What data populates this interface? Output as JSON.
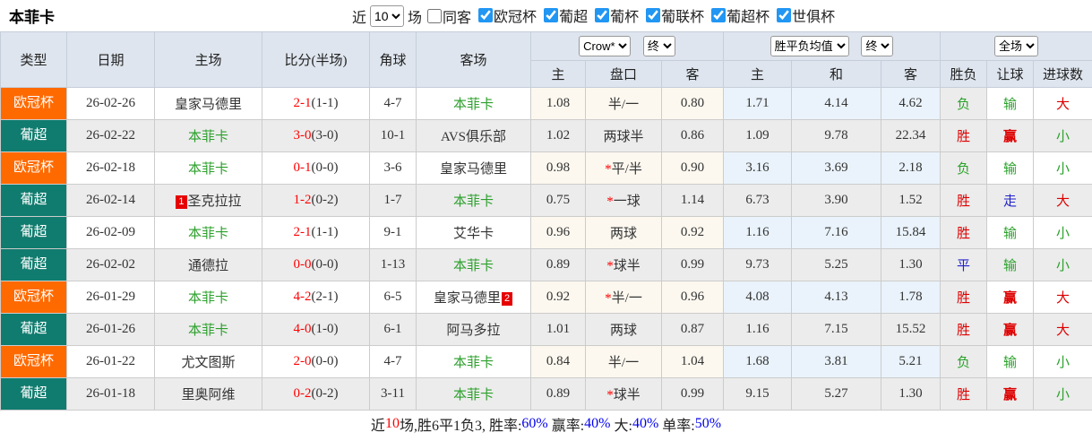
{
  "title": "本菲卡",
  "topbar": {
    "near_label": "近",
    "matches_select": "10",
    "games_label": "场",
    "same_venue": {
      "label": "同客",
      "checked": false
    },
    "leagues": [
      {
        "label": "欧冠杯",
        "checked": true
      },
      {
        "label": "葡超",
        "checked": true
      },
      {
        "label": "葡杯",
        "checked": true
      },
      {
        "label": "葡联杯",
        "checked": true
      },
      {
        "label": "葡超杯",
        "checked": true
      },
      {
        "label": "世俱杯",
        "checked": true
      }
    ]
  },
  "table": {
    "main_headers": [
      "类型",
      "日期",
      "主场",
      "比分(半场)",
      "角球",
      "客场"
    ],
    "odds_select": "Crow*",
    "odds_state_select": "终",
    "odds_subheaders": [
      "主",
      "盘口",
      "客"
    ],
    "avg_select": "胜平负均值",
    "avg_state_select": "终",
    "avg_subheaders": [
      "主",
      "和",
      "客"
    ],
    "scope_select": "全场",
    "result_subheaders": [
      "胜负",
      "让球",
      "进球数"
    ],
    "type_colors": {
      "欧冠杯": "#ff6a00",
      "葡超": "#107c6f"
    },
    "rows": [
      {
        "type": "欧冠杯",
        "date": "26-02-26",
        "home": {
          "name": "皇家马德里",
          "green": false
        },
        "score": {
          "full": "2-1",
          "half": "(1-1)"
        },
        "corner": "4-7",
        "away": {
          "name": "本菲卡",
          "green": true
        },
        "odds": {
          "home": "1.08",
          "star": false,
          "handicap": "半/一",
          "away": "0.80"
        },
        "avg": {
          "home": "1.71",
          "draw": "4.14",
          "away": "4.62"
        },
        "result": {
          "wl": {
            "text": "负",
            "color": "green"
          },
          "handicap": {
            "text": "输",
            "color": "green"
          },
          "goals": {
            "text": "大",
            "color": "red"
          }
        }
      },
      {
        "type": "葡超",
        "date": "26-02-22",
        "home": {
          "name": "本菲卡",
          "green": true
        },
        "score": {
          "full": "3-0",
          "half": "(3-0)"
        },
        "corner": "10-1",
        "away": {
          "name": "AVS俱乐部",
          "green": false
        },
        "odds": {
          "home": "1.02",
          "star": false,
          "handicap": "两球半",
          "away": "0.86"
        },
        "avg": {
          "home": "1.09",
          "draw": "9.78",
          "away": "22.34"
        },
        "result": {
          "wl": {
            "text": "胜",
            "color": "red"
          },
          "handicap": {
            "text": "赢",
            "color": "red"
          },
          "goals": {
            "text": "小",
            "color": "green"
          }
        }
      },
      {
        "type": "欧冠杯",
        "date": "26-02-18",
        "home": {
          "name": "本菲卡",
          "green": true
        },
        "score": {
          "full": "0-1",
          "half": "(0-0)"
        },
        "corner": "3-6",
        "away": {
          "name": "皇家马德里",
          "green": false
        },
        "odds": {
          "home": "0.98",
          "star": true,
          "handicap": "平/半",
          "away": "0.90"
        },
        "avg": {
          "home": "3.16",
          "draw": "3.69",
          "away": "2.18"
        },
        "result": {
          "wl": {
            "text": "负",
            "color": "green"
          },
          "handicap": {
            "text": "输",
            "color": "green"
          },
          "goals": {
            "text": "小",
            "color": "green"
          }
        }
      },
      {
        "type": "葡超",
        "date": "26-02-14",
        "home": {
          "name": "圣克拉拉",
          "green": false,
          "badge": "1",
          "badge_pos": "before"
        },
        "score": {
          "full": "1-2",
          "half": "(0-2)"
        },
        "corner": "1-7",
        "away": {
          "name": "本菲卡",
          "green": true
        },
        "odds": {
          "home": "0.75",
          "star": true,
          "handicap": "一球",
          "away": "1.14"
        },
        "avg": {
          "home": "6.73",
          "draw": "3.90",
          "away": "1.52"
        },
        "result": {
          "wl": {
            "text": "胜",
            "color": "red"
          },
          "handicap": {
            "text": "走",
            "color": "blue"
          },
          "goals": {
            "text": "大",
            "color": "red"
          }
        }
      },
      {
        "type": "葡超",
        "date": "26-02-09",
        "home": {
          "name": "本菲卡",
          "green": true
        },
        "score": {
          "full": "2-1",
          "half": "(1-1)"
        },
        "corner": "9-1",
        "away": {
          "name": "艾华卡",
          "green": false
        },
        "odds": {
          "home": "0.96",
          "star": false,
          "handicap": "两球",
          "away": "0.92"
        },
        "avg": {
          "home": "1.16",
          "draw": "7.16",
          "away": "15.84"
        },
        "result": {
          "wl": {
            "text": "胜",
            "color": "red"
          },
          "handicap": {
            "text": "输",
            "color": "green"
          },
          "goals": {
            "text": "小",
            "color": "green"
          }
        }
      },
      {
        "type": "葡超",
        "date": "26-02-02",
        "home": {
          "name": "通德拉",
          "green": false
        },
        "score": {
          "full": "0-0",
          "half": "(0-0)"
        },
        "corner": "1-13",
        "away": {
          "name": "本菲卡",
          "green": true
        },
        "odds": {
          "home": "0.89",
          "star": true,
          "handicap": "球半",
          "away": "0.99"
        },
        "avg": {
          "home": "9.73",
          "draw": "5.25",
          "away": "1.30"
        },
        "result": {
          "wl": {
            "text": "平",
            "color": "blue"
          },
          "handicap": {
            "text": "输",
            "color": "green"
          },
          "goals": {
            "text": "小",
            "color": "green"
          }
        }
      },
      {
        "type": "欧冠杯",
        "date": "26-01-29",
        "home": {
          "name": "本菲卡",
          "green": true
        },
        "score": {
          "full": "4-2",
          "half": "(2-1)"
        },
        "corner": "6-5",
        "away": {
          "name": "皇家马德里",
          "green": false,
          "badge": "2",
          "badge_pos": "after"
        },
        "odds": {
          "home": "0.92",
          "star": true,
          "handicap": "半/一",
          "away": "0.96"
        },
        "avg": {
          "home": "4.08",
          "draw": "4.13",
          "away": "1.78"
        },
        "result": {
          "wl": {
            "text": "胜",
            "color": "red"
          },
          "handicap": {
            "text": "赢",
            "color": "red"
          },
          "goals": {
            "text": "大",
            "color": "red"
          }
        }
      },
      {
        "type": "葡超",
        "date": "26-01-26",
        "home": {
          "name": "本菲卡",
          "green": true
        },
        "score": {
          "full": "4-0",
          "half": "(1-0)"
        },
        "corner": "6-1",
        "away": {
          "name": "阿马多拉",
          "green": false
        },
        "odds": {
          "home": "1.01",
          "star": false,
          "handicap": "两球",
          "away": "0.87"
        },
        "avg": {
          "home": "1.16",
          "draw": "7.15",
          "away": "15.52"
        },
        "result": {
          "wl": {
            "text": "胜",
            "color": "red"
          },
          "handicap": {
            "text": "赢",
            "color": "red"
          },
          "goals": {
            "text": "大",
            "color": "red"
          }
        }
      },
      {
        "type": "欧冠杯",
        "date": "26-01-22",
        "home": {
          "name": "尤文图斯",
          "green": false
        },
        "score": {
          "full": "2-0",
          "half": "(0-0)"
        },
        "corner": "4-7",
        "away": {
          "name": "本菲卡",
          "green": true
        },
        "odds": {
          "home": "0.84",
          "star": false,
          "handicap": "半/一",
          "away": "1.04"
        },
        "avg": {
          "home": "1.68",
          "draw": "3.81",
          "away": "5.21"
        },
        "result": {
          "wl": {
            "text": "负",
            "color": "green"
          },
          "handicap": {
            "text": "输",
            "color": "green"
          },
          "goals": {
            "text": "小",
            "color": "green"
          }
        }
      },
      {
        "type": "葡超",
        "date": "26-01-18",
        "home": {
          "name": "里奥阿维",
          "green": false
        },
        "score": {
          "full": "0-2",
          "half": "(0-2)"
        },
        "corner": "3-11",
        "away": {
          "name": "本菲卡",
          "green": true
        },
        "odds": {
          "home": "0.89",
          "star": true,
          "handicap": "球半",
          "away": "0.99"
        },
        "avg": {
          "home": "9.15",
          "draw": "5.27",
          "away": "1.30"
        },
        "result": {
          "wl": {
            "text": "胜",
            "color": "red"
          },
          "handicap": {
            "text": "赢",
            "color": "red"
          },
          "goals": {
            "text": "小",
            "color": "green"
          }
        }
      }
    ]
  },
  "footer": {
    "segments": [
      {
        "text": "近",
        "color": "black"
      },
      {
        "text": "10",
        "color": "red"
      },
      {
        "text": "场,胜6平1负3, 胜率:",
        "color": "black"
      },
      {
        "text": "60%",
        "color": "blue"
      },
      {
        "text": " 赢率:",
        "color": "black"
      },
      {
        "text": "40%",
        "color": "blue"
      },
      {
        "text": " 大:",
        "color": "black"
      },
      {
        "text": "40%",
        "color": "blue"
      },
      {
        "text": " 单率:",
        "color": "black"
      },
      {
        "text": "50%",
        "color": "blue"
      }
    ]
  },
  "colors": {
    "type_ucl": "#ff6a00",
    "type_liga": "#107c6f",
    "team_green": "#2ca02c",
    "score_red": "#ff0000",
    "badge_red": "#e60000",
    "footer_blue": "#0000ee"
  }
}
